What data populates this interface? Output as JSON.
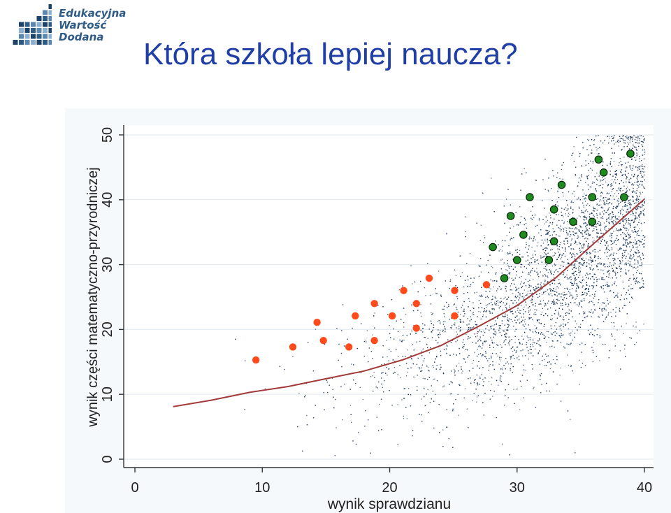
{
  "header": {
    "logo_lines": [
      "Edukacyjna",
      "Wartość",
      "Dodana"
    ],
    "title": "Która szkoła lepiej naucza?"
  },
  "colors": {
    "title": "#1f3fa6",
    "logo_blue": "#2f5c86",
    "scatter_dots": "#1e3a5f",
    "trend_line": "#a33a3a",
    "school_a": "#ff4a1c",
    "school_b": "#1f8a1f",
    "plot_background": "#ffffff",
    "gridline": "#e6ecf0"
  },
  "chart_data": {
    "type": "scatter",
    "title": "",
    "xlabel": "wynik sprawdzianu",
    "ylabel": "wynik części matematyczno-przyrodniczej",
    "xlim": [
      0,
      40
    ],
    "ylim": [
      0,
      50
    ],
    "xticks": [
      0,
      10,
      20,
      30,
      40
    ],
    "yticks": [
      0,
      10,
      20,
      30,
      40,
      50
    ],
    "grid": "horizontal",
    "series": [
      {
        "marker": "small dots (background population)",
        "color": "#1e3a5f",
        "x_range": [
          3,
          40
        ],
        "trend": "increasing, density concentrated around the curve"
      },
      {
        "marker": "curve",
        "color": "#a33a3a",
        "x": [
          3,
          6,
          9,
          12,
          15,
          18,
          21,
          24,
          27,
          30,
          33,
          36,
          40
        ],
        "y": [
          8.1,
          9.1,
          10.3,
          11.2,
          12.4,
          13.6,
          15.3,
          17.5,
          20.5,
          23.7,
          27.9,
          33.2,
          40.1
        ]
      },
      {
        "marker": "filled circle",
        "color": "#ff4a1c",
        "points": [
          [
            9.5,
            15.3
          ],
          [
            12.4,
            17.3
          ],
          [
            14.3,
            21.1
          ],
          [
            14.8,
            18.3
          ],
          [
            16.8,
            17.3
          ],
          [
            17.3,
            22.1
          ],
          [
            18.8,
            24.0
          ],
          [
            18.8,
            18.3
          ],
          [
            20.2,
            22.1
          ],
          [
            21.1,
            26.0
          ],
          [
            22.1,
            24.0
          ],
          [
            22.1,
            20.2
          ],
          [
            23.1,
            27.9
          ],
          [
            25.1,
            26.0
          ],
          [
            25.1,
            22.1
          ],
          [
            27.6,
            26.9
          ]
        ]
      },
      {
        "marker": "filled circle",
        "color": "#1f8a1f",
        "points": [
          [
            28.1,
            32.7
          ],
          [
            29.0,
            27.9
          ],
          [
            29.5,
            37.5
          ],
          [
            30.0,
            30.7
          ],
          [
            30.5,
            34.6
          ],
          [
            31.0,
            40.4
          ],
          [
            32.5,
            30.7
          ],
          [
            32.9,
            33.6
          ],
          [
            32.9,
            38.5
          ],
          [
            33.5,
            42.3
          ],
          [
            34.4,
            36.6
          ],
          [
            35.9,
            36.6
          ],
          [
            35.9,
            40.4
          ],
          [
            36.4,
            46.2
          ],
          [
            36.8,
            44.2
          ],
          [
            38.4,
            40.4
          ],
          [
            38.9,
            47.1
          ]
        ]
      }
    ]
  }
}
